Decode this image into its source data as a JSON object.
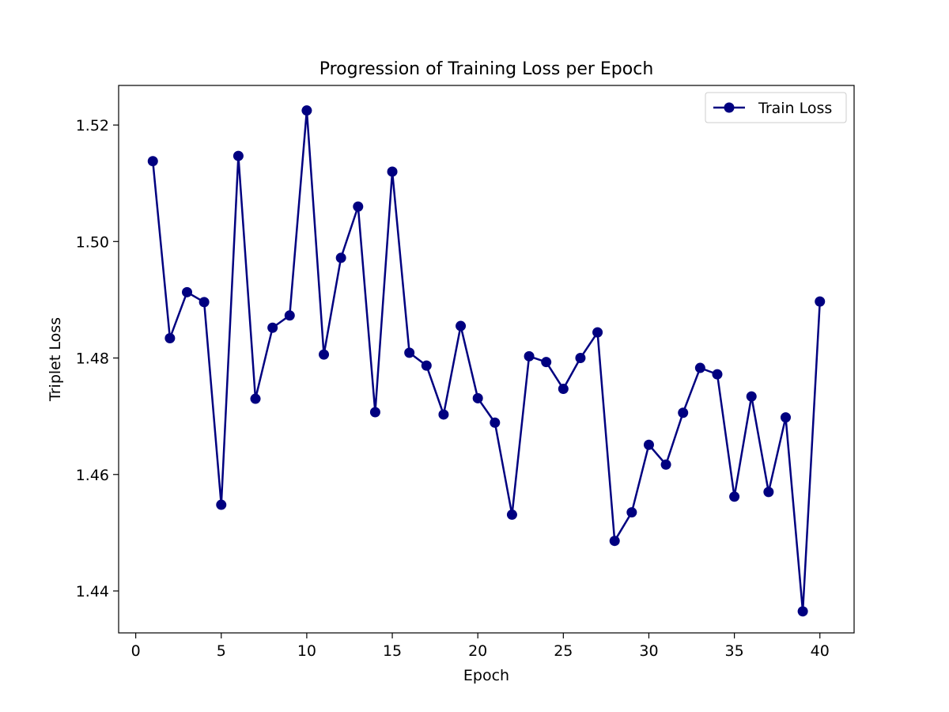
{
  "chart_data": {
    "type": "line",
    "title": "Progression of Training Loss per Epoch",
    "xlabel": "Epoch",
    "ylabel": "Triplet Loss",
    "xlim": [
      -1,
      42
    ],
    "ylim": [
      1.4328,
      1.5268
    ],
    "xticks": [
      0,
      5,
      10,
      15,
      20,
      25,
      30,
      35,
      40
    ],
    "xtick_labels": [
      "0",
      "5",
      "10",
      "15",
      "20",
      "25",
      "30",
      "35",
      "40"
    ],
    "yticks": [
      1.44,
      1.46,
      1.48,
      1.5,
      1.52
    ],
    "ytick_labels": [
      "1.44",
      "1.46",
      "1.48",
      "1.50",
      "1.52"
    ],
    "grid": false,
    "legend_position": "top-right",
    "x": [
      1,
      2,
      3,
      4,
      5,
      6,
      7,
      8,
      9,
      10,
      11,
      12,
      13,
      14,
      15,
      16,
      17,
      18,
      19,
      20,
      21,
      22,
      23,
      24,
      25,
      26,
      27,
      28,
      29,
      30,
      31,
      32,
      33,
      34,
      35,
      36,
      37,
      38,
      39,
      40
    ],
    "series": [
      {
        "name": "Train Loss",
        "color": "#000080",
        "marker": "circle",
        "values": [
          1.5138,
          1.4834,
          1.4913,
          1.4896,
          1.4548,
          1.5147,
          1.473,
          1.4852,
          1.4873,
          1.5225,
          1.4806,
          1.4972,
          1.506,
          1.4707,
          1.512,
          1.4809,
          1.4787,
          1.4703,
          1.4855,
          1.4731,
          1.4689,
          1.4531,
          1.4803,
          1.4793,
          1.4747,
          1.48,
          1.4844,
          1.4486,
          1.4535,
          1.4651,
          1.4617,
          1.4706,
          1.4783,
          1.4772,
          1.4562,
          1.4734,
          1.457,
          1.4698,
          1.4365,
          1.4897
        ]
      }
    ]
  }
}
